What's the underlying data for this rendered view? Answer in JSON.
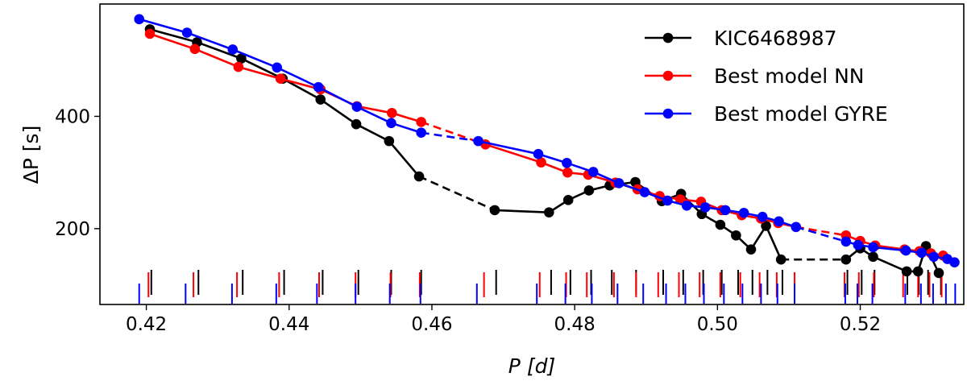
{
  "chart_data": {
    "type": "line",
    "xlabel": "P [d]",
    "ylabel": "ΔP [s]",
    "xlim": [
      0.4135,
      0.5345
    ],
    "ylim": [
      65,
      600
    ],
    "xticks": [
      0.42,
      0.44,
      0.46,
      0.48,
      0.5,
      0.52
    ],
    "xtick_labels": [
      "0.42",
      "0.44",
      "0.46",
      "0.48",
      "0.50",
      "0.52"
    ],
    "yticks": [
      200,
      400
    ],
    "ytick_labels": [
      "200",
      "400"
    ],
    "grid": false,
    "legend_position": "top-right",
    "series": [
      {
        "name": "KIC6468987",
        "color": "#000000",
        "segments": [
          [
            [
              0.4205,
              555
            ],
            [
              0.4271,
              532
            ],
            [
              0.4333,
              503
            ],
            [
              0.4391,
              467
            ],
            [
              0.4444,
              430
            ],
            [
              0.4494,
              386
            ],
            [
              0.454,
              356
            ],
            [
              0.4582,
              293
            ]
          ],
          [
            [
              0.4688,
              233
            ],
            [
              0.4764,
              229
            ],
            [
              0.4791,
              251
            ],
            [
              0.482,
              268
            ],
            [
              0.4849,
              277
            ],
            [
              0.4885,
              283
            ],
            [
              0.4922,
              249
            ],
            [
              0.4949,
              262
            ],
            [
              0.4978,
              226
            ],
            [
              0.5004,
              207
            ],
            [
              0.5026,
              188
            ],
            [
              0.5047,
              163
            ],
            [
              0.5068,
              205
            ],
            [
              0.5089,
              145
            ]
          ],
          [
            [
              0.518,
              145
            ],
            [
              0.52,
              165
            ],
            [
              0.5218,
              150
            ],
            [
              0.5265,
              124
            ],
            [
              0.5281,
              124
            ],
            [
              0.5292,
              169
            ],
            [
              0.531,
              121
            ]
          ]
        ],
        "gaps": [
          [
            [
              0.4582,
              293
            ],
            [
              0.4688,
              233
            ]
          ],
          [
            [
              0.5089,
              145
            ],
            [
              0.518,
              145
            ]
          ]
        ],
        "ticks": [
          0.4207,
          0.4273,
          0.4335,
          0.4393,
          0.4447,
          0.4497,
          0.4543,
          0.4585,
          0.469,
          0.4767,
          0.4794,
          0.4823,
          0.4852,
          0.4886,
          0.4924,
          0.4952,
          0.498,
          0.5006,
          0.5029,
          0.5049,
          0.507,
          0.5091,
          0.5182,
          0.5202,
          0.522,
          0.5266,
          0.5282,
          0.5295,
          0.5313
        ]
      },
      {
        "name": "Best model NN",
        "color": "#ff0000",
        "segments": [
          [
            [
              0.4205,
              547
            ],
            [
              0.4268,
              520
            ],
            [
              0.4329,
              488
            ],
            [
              0.4388,
              467
            ],
            [
              0.4444,
              448
            ],
            [
              0.4495,
              418
            ],
            [
              0.4544,
              406
            ],
            [
              0.4585,
              390
            ]
          ],
          [
            [
              0.4675,
              350
            ],
            [
              0.4753,
              318
            ],
            [
              0.479,
              300
            ],
            [
              0.4819,
              296
            ],
            [
              0.4857,
              282
            ],
            [
              0.4888,
              270
            ],
            [
              0.4919,
              258
            ],
            [
              0.4948,
              252
            ],
            [
              0.4977,
              248
            ],
            [
              0.5006,
              233
            ],
            [
              0.5034,
              224
            ],
            [
              0.5061,
              218
            ],
            [
              0.5085,
              210
            ],
            [
              0.511,
              203
            ]
          ],
          [
            [
              0.518,
              188
            ],
            [
              0.52,
              178
            ],
            [
              0.5221,
              170
            ],
            [
              0.5262,
              163
            ],
            [
              0.5283,
              160
            ],
            [
              0.5299,
              156
            ],
            [
              0.5316,
              152
            ]
          ]
        ],
        "gaps": [
          [
            [
              0.4585,
              390
            ],
            [
              0.4675,
              350
            ]
          ],
          [
            [
              0.511,
              203
            ],
            [
              0.518,
              188
            ]
          ]
        ],
        "ticks": [
          0.4203,
          0.4266,
          0.4327,
          0.4386,
          0.4442,
          0.4493,
          0.4542,
          0.4583,
          0.4673,
          0.4751,
          0.4788,
          0.4817,
          0.4855,
          0.4886,
          0.4917,
          0.4946,
          0.4975,
          0.5004,
          0.5032,
          0.5059,
          0.5083,
          0.5108,
          0.5178,
          0.5198,
          0.5219,
          0.526,
          0.5281,
          0.5297,
          0.5314
        ]
      },
      {
        "name": "Best model GYRE",
        "color": "#0000ff",
        "segments": [
          [
            [
              0.419,
              573
            ],
            [
              0.4257,
              549
            ],
            [
              0.4321,
              519
            ],
            [
              0.4383,
              487
            ],
            [
              0.4441,
              452
            ],
            [
              0.4495,
              417
            ],
            [
              0.4543,
              388
            ],
            [
              0.4585,
              371
            ]
          ],
          [
            [
              0.4665,
              356
            ],
            [
              0.4749,
              333
            ],
            [
              0.4789,
              317
            ],
            [
              0.4826,
              301
            ],
            [
              0.4862,
              281
            ],
            [
              0.4898,
              265
            ],
            [
              0.493,
              250
            ],
            [
              0.4957,
              241
            ],
            [
              0.4983,
              238
            ],
            [
              0.5011,
              233
            ],
            [
              0.5037,
              228
            ],
            [
              0.5063,
              221
            ],
            [
              0.5086,
              213
            ],
            [
              0.511,
              203
            ]
          ],
          [
            [
              0.518,
              177
            ],
            [
              0.5197,
              171
            ],
            [
              0.5218,
              167
            ],
            [
              0.5264,
              161
            ],
            [
              0.5286,
              157
            ],
            [
              0.5303,
              150
            ],
            [
              0.5322,
              146
            ],
            [
              0.5332,
              140
            ]
          ]
        ],
        "gaps": [
          [
            [
              0.4585,
              371
            ],
            [
              0.4665,
              356
            ]
          ],
          [
            [
              0.511,
              203
            ],
            [
              0.518,
              177
            ]
          ]
        ],
        "ticks": [
          0.419,
          0.4255,
          0.432,
          0.4382,
          0.4439,
          0.4493,
          0.4541,
          0.4584,
          0.4663,
          0.4747,
          0.4787,
          0.4824,
          0.486,
          0.4896,
          0.4928,
          0.4955,
          0.4981,
          0.5009,
          0.5035,
          0.5061,
          0.5084,
          0.5108,
          0.5179,
          0.5196,
          0.5217,
          0.5263,
          0.5285,
          0.5302,
          0.532,
          0.5333
        ]
      }
    ]
  }
}
